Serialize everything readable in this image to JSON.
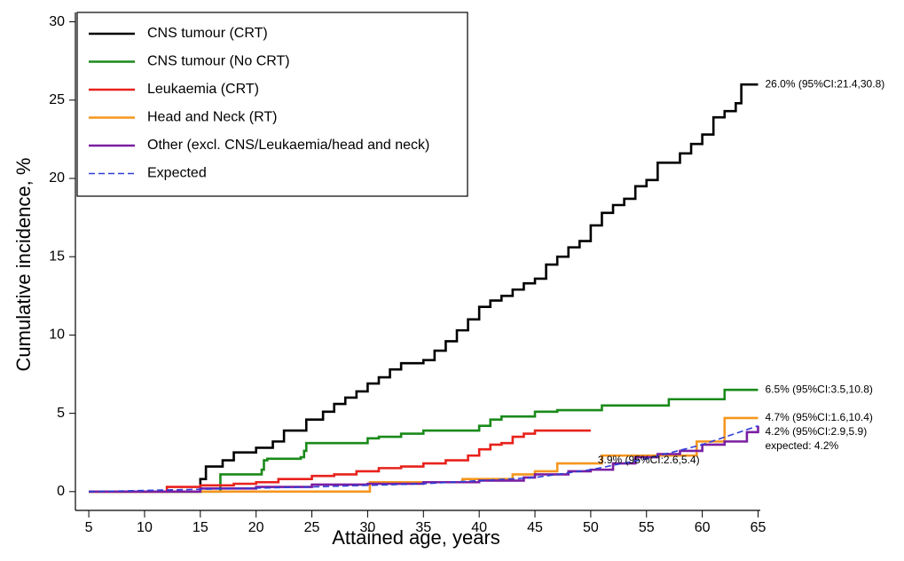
{
  "chart_data": {
    "type": "line",
    "xlabel": "Attained age, years",
    "ylabel": "Cumulative incidence, %",
    "xlim": [
      3.8,
      65.2
    ],
    "ylim": [
      -1.2,
      30.6
    ],
    "xticks": [
      5,
      10,
      15,
      20,
      25,
      30,
      35,
      40,
      45,
      50,
      55,
      60,
      65
    ],
    "yticks": [
      0,
      5,
      10,
      15,
      20,
      25,
      30
    ],
    "legend": "upper left",
    "series": [
      {
        "name": "CNS tumour (CRT)",
        "color": "#000000",
        "drawstyle": "steps-post",
        "end_label": "26.0% (95%CI:21.4,30.8)",
        "x": [
          5,
          15,
          15.5,
          17,
          18,
          20,
          21.5,
          22.5,
          24.5,
          26,
          27,
          28,
          29,
          30,
          31,
          32,
          33,
          35,
          36,
          37,
          38,
          39,
          40,
          41,
          42,
          43,
          44,
          45,
          46,
          47,
          48,
          49,
          50,
          51,
          52,
          53,
          54,
          55,
          56,
          58,
          59,
          60,
          61,
          62,
          63,
          63.5,
          65
        ],
        "values": [
          0,
          0.8,
          1.6,
          2.0,
          2.5,
          2.8,
          3.2,
          3.9,
          4.6,
          5.1,
          5.6,
          6.0,
          6.4,
          6.9,
          7.3,
          7.8,
          8.2,
          8.4,
          9.0,
          9.6,
          10.3,
          11.0,
          11.8,
          12.2,
          12.5,
          12.9,
          13.3,
          13.6,
          14.5,
          15.0,
          15.6,
          16.0,
          17.0,
          17.8,
          18.3,
          18.7,
          19.5,
          19.9,
          21.0,
          21.6,
          22.2,
          22.8,
          23.9,
          24.3,
          24.8,
          26.0,
          26.0
        ]
      },
      {
        "name": "CNS tumour (No CRT)",
        "color": "#1a8a1a",
        "drawstyle": "steps-post",
        "end_label": "6.5% (95%CI:3.5,10.8)",
        "x": [
          5,
          16.8,
          20.5,
          20.7,
          21,
          24,
          24.3,
          24.5,
          30,
          31,
          33,
          35,
          40,
          41,
          42,
          45,
          47,
          51,
          57,
          62,
          65
        ],
        "values": [
          0,
          1.1,
          1.4,
          2.0,
          2.1,
          2.2,
          2.6,
          3.1,
          3.4,
          3.5,
          3.7,
          3.9,
          4.2,
          4.6,
          4.8,
          5.1,
          5.2,
          5.5,
          5.9,
          6.5,
          6.5
        ]
      },
      {
        "name": "Leukaemia (CRT)",
        "color": "#e8221c",
        "drawstyle": "steps-post",
        "end_label": "3.9% (95%CI:2.6,5.4)",
        "x": [
          5,
          12,
          15,
          18,
          20,
          22,
          25,
          27,
          29,
          31,
          33,
          35,
          37,
          39,
          40,
          41,
          42,
          43,
          44,
          45,
          50
        ],
        "values": [
          0,
          0.3,
          0.4,
          0.5,
          0.6,
          0.8,
          1.0,
          1.1,
          1.3,
          1.5,
          1.6,
          1.8,
          2.0,
          2.3,
          2.7,
          3.0,
          3.1,
          3.5,
          3.7,
          3.9,
          3.9
        ]
      },
      {
        "name": "Head and Neck (RT)",
        "color": "#f5961e",
        "drawstyle": "steps-post",
        "end_label": "4.7% (95%CI:1.6,10.4)",
        "x": [
          5,
          30,
          30.2,
          38.5,
          43,
          45,
          47,
          51,
          58,
          59.5,
          62,
          65
        ],
        "values": [
          0,
          0,
          0.6,
          0.8,
          1.1,
          1.3,
          1.8,
          2.3,
          2.3,
          3.2,
          4.7,
          4.7
        ]
      },
      {
        "name": "Other (excl. CNS/Leukaemia/head and neck)",
        "color": "#7a1fa2",
        "drawstyle": "steps-post",
        "end_label": "4.2% (95%CI:2.9,5.9)",
        "x": [
          5,
          15,
          20,
          25,
          30,
          35,
          40,
          44,
          45,
          48,
          50,
          52,
          54,
          56,
          58,
          60,
          62,
          64,
          65
        ],
        "values": [
          0,
          0.2,
          0.3,
          0.45,
          0.5,
          0.6,
          0.7,
          0.9,
          1.1,
          1.3,
          1.4,
          1.8,
          2.2,
          2.4,
          2.6,
          3.0,
          3.2,
          3.8,
          4.2
        ]
      },
      {
        "name": "Expected",
        "color": "#2c3fd6",
        "drawstyle": "default",
        "linestyle": "dashed",
        "end_label": "expected: 4.2%",
        "x": [
          5,
          15,
          25,
          35,
          45,
          50,
          55,
          60,
          65
        ],
        "values": [
          0,
          0.15,
          0.3,
          0.5,
          0.9,
          1.4,
          2.1,
          3.0,
          4.2
        ]
      }
    ]
  }
}
